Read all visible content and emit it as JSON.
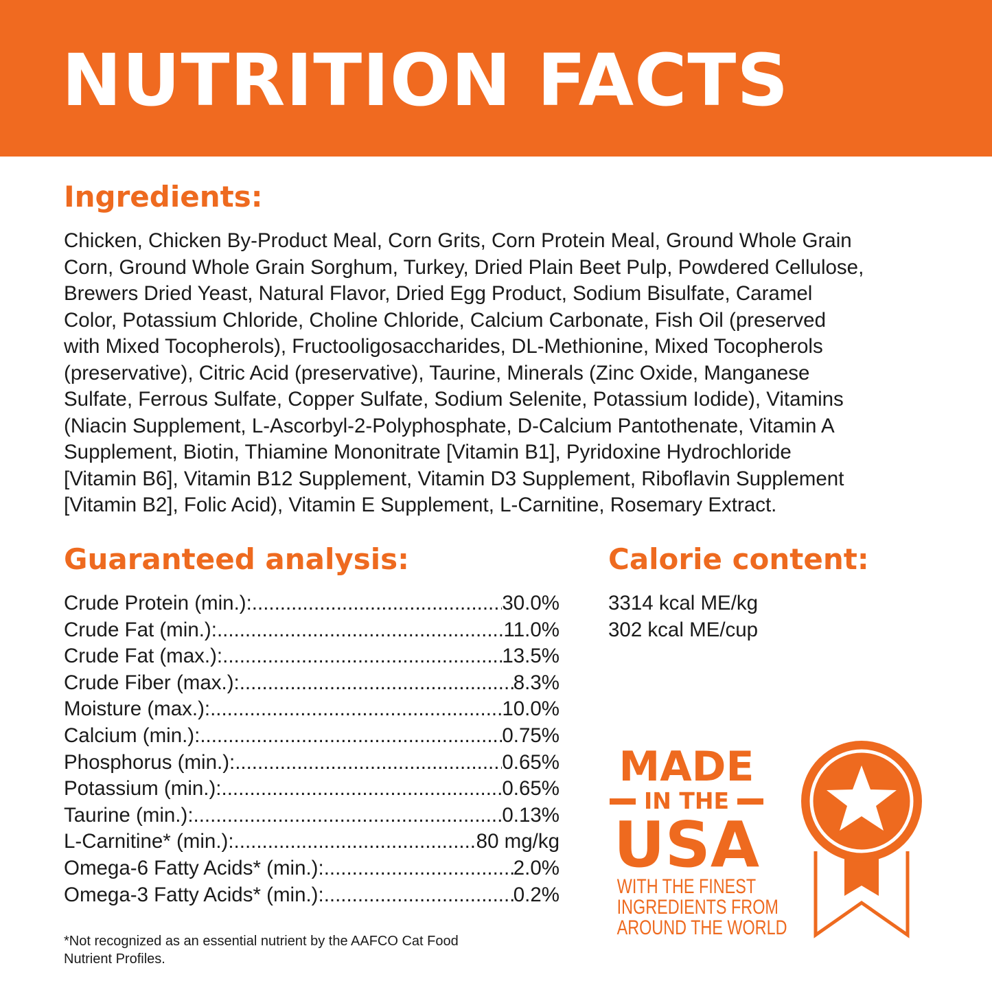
{
  "header": {
    "title": "NUTRITION FACTS"
  },
  "colors": {
    "brand_orange": "#F06A20",
    "text": "#1a1a1a"
  },
  "ingredients": {
    "heading": "Ingredients:",
    "lines": [
      "Chicken, Chicken By-Product Meal, Corn Grits, Corn Protein Meal, Ground Whole Grain",
      "Corn, Ground Whole Grain Sorghum, Turkey, Dried Plain Beet Pulp, Powdered Cellulose,",
      "Brewers Dried Yeast, Natural Flavor, Dried Egg Product, Sodium Bisulfate, Caramel",
      "Color, Potassium Chloride, Choline Chloride, Calcium Carbonate, Fish Oil (preserved",
      "with Mixed Tocopherols), Fructooligosaccharides, DL-Methionine, Mixed Tocopherols",
      "(preservative), Citric Acid (preservative), Taurine, Minerals (Zinc Oxide, Manganese",
      "Sulfate, Ferrous Sulfate, Copper Sulfate, Sodium Selenite, Potassium Iodide), Vitamins",
      "(Niacin Supplement, L-Ascorbyl-2-Polyphosphate, D-Calcium Pantothenate, Vitamin A",
      "Supplement, Biotin, Thiamine Mononitrate [Vitamin B1], Pyridoxine Hydrochloride",
      "[Vitamin B6], Vitamin B12 Supplement, Vitamin D3 Supplement, Riboflavin Supplement",
      "[Vitamin B2], Folic Acid), Vitamin E Supplement, L-Carnitine, Rosemary Extract."
    ]
  },
  "analysis": {
    "heading": "Guaranteed analysis:",
    "rows": [
      {
        "label": "Crude Protein (min.):",
        "value": "30.0%"
      },
      {
        "label": "Crude Fat (min.):",
        "value": "11.0%"
      },
      {
        "label": "Crude Fat (max.):",
        "value": "13.5%"
      },
      {
        "label": "Crude Fiber (max.):",
        "value": "8.3%"
      },
      {
        "label": "Moisture (max.):",
        "value": "10.0%"
      },
      {
        "label": "Calcium (min.):",
        "value": "0.75%"
      },
      {
        "label": "Phosphorus (min.):",
        "value": "0.65%"
      },
      {
        "label": "Potassium (min.):",
        "value": "0.65%"
      },
      {
        "label": "Taurine (min.):",
        "value": "0.13%"
      },
      {
        "label": "L-Carnitine* (min.):",
        "value": "80 mg/kg"
      },
      {
        "label": "Omega-6 Fatty Acids* (min.):",
        "value": "2.0%"
      },
      {
        "label": "Omega-3 Fatty Acids* (min.):",
        "value": "0.2%"
      }
    ]
  },
  "calorie": {
    "heading": "Calorie content:",
    "lines": [
      "3314 kcal ME/kg",
      "302 kcal ME/cup"
    ]
  },
  "footnote": {
    "lines": [
      "*Not recognized as an essential nutrient by the AAFCO Cat Food",
      "Nutrient Profiles."
    ]
  },
  "badge": {
    "made": "MADE",
    "in_the": "IN THE",
    "usa": "USA",
    "sub": [
      "WITH THE FINEST",
      "INGREDIENTS FROM",
      "AROUND THE WORLD"
    ],
    "icon": "medal-star-icon"
  }
}
